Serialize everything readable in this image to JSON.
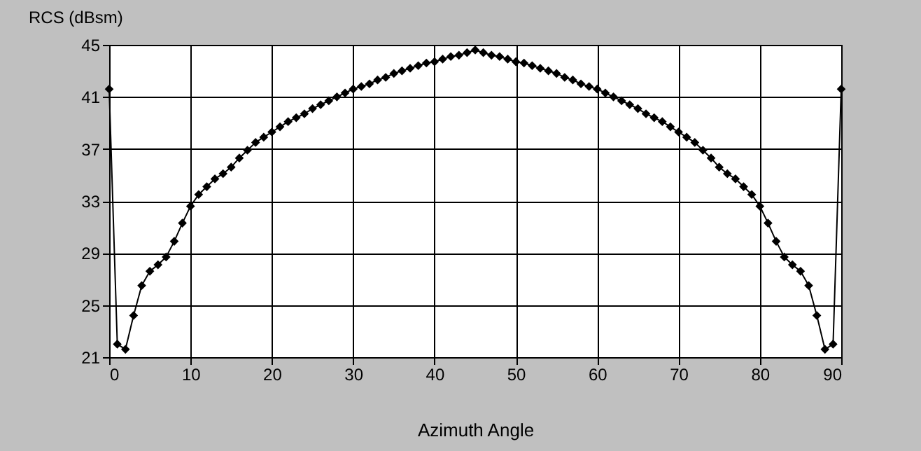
{
  "chart_data": {
    "type": "line",
    "xlabel": "Azimuth Angle",
    "ylabel": "RCS (dBsm)",
    "x": [
      0,
      1,
      2,
      3,
      4,
      5,
      6,
      7,
      8,
      9,
      10,
      11,
      12,
      13,
      14,
      15,
      16,
      17,
      18,
      19,
      20,
      21,
      22,
      23,
      24,
      25,
      26,
      27,
      28,
      29,
      30,
      31,
      32,
      33,
      34,
      35,
      36,
      37,
      38,
      39,
      40,
      41,
      42,
      43,
      44,
      45,
      46,
      47,
      48,
      49,
      50,
      51,
      52,
      53,
      54,
      55,
      56,
      57,
      58,
      59,
      60,
      61,
      62,
      63,
      64,
      65,
      66,
      67,
      68,
      69,
      70,
      71,
      72,
      73,
      74,
      75,
      76,
      77,
      78,
      79,
      80,
      81,
      82,
      83,
      84,
      85,
      86,
      87,
      88,
      89,
      90
    ],
    "series": [
      {
        "color": "#000000",
        "values": [
          41.6,
          22.0,
          21.6,
          24.2,
          26.5,
          27.6,
          28.1,
          28.7,
          29.9,
          31.3,
          32.6,
          33.5,
          34.1,
          34.7,
          35.1,
          35.6,
          36.3,
          36.9,
          37.5,
          37.9,
          38.3,
          38.7,
          39.1,
          39.4,
          39.7,
          40.1,
          40.4,
          40.7,
          41.0,
          41.3,
          41.6,
          41.8,
          42.0,
          42.3,
          42.5,
          42.8,
          43.0,
          43.2,
          43.4,
          43.6,
          43.7,
          43.9,
          44.1,
          44.2,
          44.4,
          44.6,
          44.4,
          44.2,
          44.1,
          43.9,
          43.7,
          43.6,
          43.4,
          43.2,
          43.0,
          42.8,
          42.5,
          42.3,
          42.0,
          41.8,
          41.6,
          41.3,
          41.0,
          40.7,
          40.4,
          40.1,
          39.7,
          39.4,
          39.1,
          38.7,
          38.3,
          37.9,
          37.5,
          36.9,
          36.3,
          35.6,
          35.1,
          34.7,
          34.1,
          33.5,
          32.6,
          31.3,
          29.9,
          28.7,
          28.1,
          27.6,
          26.5,
          24.2,
          21.6,
          22.0,
          41.6
        ]
      }
    ],
    "xlim": [
      0,
      90
    ],
    "xticks": [
      0,
      10,
      20,
      30,
      40,
      50,
      60,
      70,
      80,
      90
    ],
    "ylim": [
      21,
      45
    ],
    "yticks": [
      21,
      25,
      29,
      33,
      37,
      41,
      45
    ],
    "grid": true,
    "marker": "diamond",
    "line_style": "solid",
    "legend": false
  }
}
